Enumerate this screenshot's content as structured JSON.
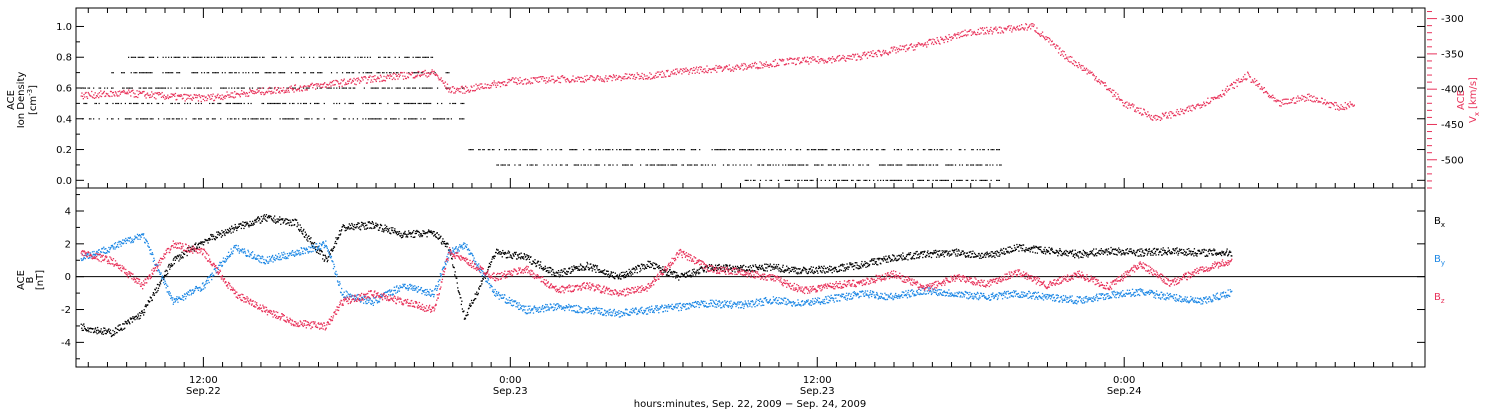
{
  "colors": {
    "black": "#000000",
    "red": "#e8325a",
    "blue": "#1e88e5"
  },
  "chart_data": [
    {
      "type": "scatter",
      "panel": "top",
      "left_axis": {
        "label_lines": [
          "ACE",
          "Ion Density"
        ],
        "unit_base": "[cm",
        "unit_exp": "-3",
        "unit_close": "]",
        "ylim": [
          -0.05,
          1.12
        ],
        "ticks": [
          "0.0",
          "0.2",
          "0.4",
          "0.6",
          "0.8",
          "1.0"
        ],
        "tick_values": [
          0,
          0.2,
          0.4,
          0.6,
          0.8,
          1.0
        ]
      },
      "right_axis": {
        "label": "ACE",
        "label_sub_base": "V",
        "label_sub": "x",
        "label_unit": "[km/s]",
        "ylim": [
          -540,
          -285
        ],
        "ticks": [
          "-300",
          "-350",
          "-400",
          "-450",
          "-500"
        ],
        "tick_values": [
          -300,
          -350,
          -400,
          -450,
          -500
        ]
      },
      "series": [
        {
          "name": "",
          "color": "#000000",
          "axis": "left",
          "levels": [
            {
              "y": 0.6,
              "from": -8,
              "to": 17
            },
            {
              "y": 0.5,
              "from": -8,
              "to": 17
            },
            {
              "y": 0.4,
              "from": -8,
              "to": 17
            },
            {
              "y": 0.7,
              "from": -6,
              "to": 16
            },
            {
              "y": 0.8,
              "from": -5,
              "to": 15
            },
            {
              "y": 0.2,
              "from": 17,
              "to": 52
            },
            {
              "y": 0.1,
              "from": 19,
              "to": 52
            },
            {
              "y": 0.0,
              "from": 35,
              "to": 52
            }
          ]
        },
        {
          "name": "",
          "color": "#e8325a",
          "axis": "right",
          "points": [
            [
              -8,
              -408
            ],
            [
              -5,
              -405
            ],
            [
              -2,
              -410
            ],
            [
              0,
              -412
            ],
            [
              3,
              -404
            ],
            [
              6,
              -398
            ],
            [
              9,
              -390
            ],
            [
              12,
              -382
            ],
            [
              15,
              -376
            ],
            [
              16,
              -400
            ],
            [
              17,
              -400
            ],
            [
              20,
              -388
            ],
            [
              23,
              -385
            ],
            [
              26,
              -384
            ],
            [
              29,
              -380
            ],
            [
              32,
              -372
            ],
            [
              35,
              -368
            ],
            [
              38,
              -360
            ],
            [
              40,
              -358
            ],
            [
              42,
              -355
            ],
            [
              44,
              -348
            ],
            [
              46,
              -340
            ],
            [
              48,
              -330
            ],
            [
              50,
              -318
            ],
            [
              52,
              -315
            ],
            [
              54,
              -310
            ],
            [
              56,
              -350
            ],
            [
              58,
              -380
            ],
            [
              60,
              -420
            ],
            [
              62,
              -440
            ],
            [
              64,
              -430
            ],
            [
              66,
              -410
            ],
            [
              68,
              -380
            ],
            [
              70,
              -420
            ],
            [
              72,
              -410
            ],
            [
              74,
              -425
            ],
            [
              75,
              -420
            ]
          ]
        }
      ]
    },
    {
      "type": "scatter",
      "panel": "bottom",
      "axis": {
        "label": "ACE",
        "label_mid": "B",
        "unit": "[nT]",
        "ylim": [
          -5.5,
          5.4
        ],
        "ticks": [
          "4",
          "2",
          "0",
          "-2",
          "-4"
        ],
        "tick_values": [
          4,
          2,
          0,
          -2,
          -4
        ]
      },
      "legend": [
        {
          "base": "B",
          "sub": "x",
          "color": "#000000"
        },
        {
          "base": "B",
          "sub": "y",
          "color": "#1e88e5"
        },
        {
          "base": "B",
          "sub": "z",
          "color": "#e8325a"
        }
      ],
      "series": [
        {
          "name": "Bx",
          "color": "#000000",
          "points": [
            [
              -8,
              -3
            ],
            [
              -6,
              -3.4
            ],
            [
              -4,
              -2.2
            ],
            [
              -2,
              1.0
            ],
            [
              0,
              2.2
            ],
            [
              2,
              3.0
            ],
            [
              4,
              3.6
            ],
            [
              6,
              3.3
            ],
            [
              8,
              1.0
            ],
            [
              9,
              3.0
            ],
            [
              11,
              3.2
            ],
            [
              13,
              2.6
            ],
            [
              15,
              2.7
            ],
            [
              16,
              1.8
            ],
            [
              17,
              -2.5
            ],
            [
              19,
              1.5
            ],
            [
              21,
              1.2
            ],
            [
              23,
              0.2
            ],
            [
              25,
              0.7
            ],
            [
              27,
              0.0
            ],
            [
              29,
              0.8
            ],
            [
              31,
              0.0
            ],
            [
              33,
              0.6
            ],
            [
              35,
              0.5
            ],
            [
              37,
              0.6
            ],
            [
              39,
              0.4
            ],
            [
              41,
              0.5
            ],
            [
              43,
              0.8
            ],
            [
              45,
              1.2
            ],
            [
              47,
              1.4
            ],
            [
              49,
              1.5
            ],
            [
              51,
              1.3
            ],
            [
              53,
              1.8
            ],
            [
              55,
              1.6
            ],
            [
              57,
              1.4
            ],
            [
              59,
              1.6
            ],
            [
              61,
              1.5
            ],
            [
              63,
              1.6
            ],
            [
              65,
              1.5
            ],
            [
              67,
              1.5
            ]
          ]
        },
        {
          "name": "By",
          "color": "#1e88e5",
          "points": [
            [
              -8,
              1.2
            ],
            [
              -6,
              1.8
            ],
            [
              -4,
              2.6
            ],
            [
              -2,
              -1.5
            ],
            [
              0,
              -0.5
            ],
            [
              2,
              1.8
            ],
            [
              4,
              1.0
            ],
            [
              6,
              1.5
            ],
            [
              8,
              2.0
            ],
            [
              9,
              -1.0
            ],
            [
              11,
              -1.5
            ],
            [
              13,
              -0.5
            ],
            [
              15,
              -1.0
            ],
            [
              16,
              1.5
            ],
            [
              17,
              2.0
            ],
            [
              19,
              -1.0
            ],
            [
              21,
              -2.0
            ],
            [
              23,
              -1.8
            ],
            [
              25,
              -2.0
            ],
            [
              27,
              -2.2
            ],
            [
              29,
              -2.0
            ],
            [
              31,
              -1.8
            ],
            [
              33,
              -1.6
            ],
            [
              35,
              -1.7
            ],
            [
              37,
              -1.4
            ],
            [
              39,
              -1.6
            ],
            [
              41,
              -1.3
            ],
            [
              43,
              -1.0
            ],
            [
              45,
              -1.2
            ],
            [
              47,
              -0.8
            ],
            [
              49,
              -1.0
            ],
            [
              51,
              -1.2
            ],
            [
              53,
              -1.0
            ],
            [
              55,
              -1.2
            ],
            [
              57,
              -1.4
            ],
            [
              59,
              -1.1
            ],
            [
              61,
              -0.9
            ],
            [
              63,
              -1.2
            ],
            [
              65,
              -1.5
            ],
            [
              67,
              -0.9
            ]
          ]
        },
        {
          "name": "Bz",
          "color": "#e8325a",
          "points": [
            [
              -8,
              1.5
            ],
            [
              -6,
              1.0
            ],
            [
              -4,
              -0.5
            ],
            [
              -2,
              2.0
            ],
            [
              0,
              1.5
            ],
            [
              2,
              -1.0
            ],
            [
              4,
              -2.0
            ],
            [
              6,
              -2.8
            ],
            [
              8,
              -3.0
            ],
            [
              9,
              -1.5
            ],
            [
              11,
              -1.0
            ],
            [
              13,
              -1.5
            ],
            [
              15,
              -2.0
            ],
            [
              16,
              1.6
            ],
            [
              17,
              1.0
            ],
            [
              19,
              0.0
            ],
            [
              21,
              0.5
            ],
            [
              23,
              -0.8
            ],
            [
              25,
              -0.5
            ],
            [
              27,
              -1.0
            ],
            [
              29,
              -0.6
            ],
            [
              31,
              1.5
            ],
            [
              33,
              0.5
            ],
            [
              35,
              0.3
            ],
            [
              37,
              0.0
            ],
            [
              39,
              -0.8
            ],
            [
              41,
              -0.5
            ],
            [
              43,
              -0.3
            ],
            [
              45,
              0.2
            ],
            [
              47,
              -0.7
            ],
            [
              49,
              0.0
            ],
            [
              51,
              -0.4
            ],
            [
              53,
              0.3
            ],
            [
              55,
              -0.5
            ],
            [
              57,
              0.2
            ],
            [
              59,
              -0.6
            ],
            [
              61,
              0.8
            ],
            [
              63,
              -0.4
            ],
            [
              65,
              0.5
            ],
            [
              67,
              1.0
            ]
          ]
        }
      ]
    }
  ],
  "x_axis": {
    "xlim": [
      -8.3,
      79.6
    ],
    "major_ticks": [
      {
        "x": 0,
        "line1": "12:00",
        "line2": "Sep.22"
      },
      {
        "x": 20,
        "line1": "0:00",
        "line2": "Sep.23"
      },
      {
        "x": 40,
        "line1": "12:00",
        "line2": "Sep.23"
      },
      {
        "x": 60,
        "line1": "0:00",
        "line2": "Sep.24"
      }
    ],
    "minor_step": 1.25,
    "title": "hours:minutes, Sep. 22, 2009 − Sep. 24, 2009"
  }
}
